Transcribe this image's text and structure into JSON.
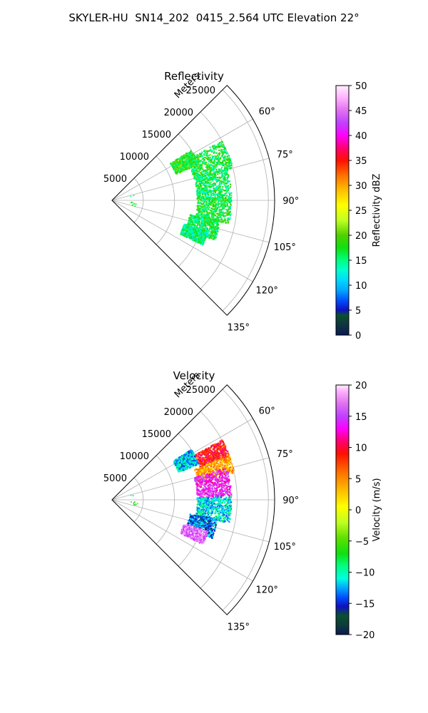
{
  "figure_title": "SKYLER-HU  SN14_202  0415_2.564 UTC Elevation 22°",
  "chart_data": [
    {
      "type": "polar-sector",
      "title": "Reflectivity",
      "range_label": "Meters",
      "azimuth_range_deg": [
        45,
        135
      ],
      "range_lim_m": [
        0,
        26000
      ],
      "range_ticks": [
        5000,
        10000,
        15000,
        20000,
        25000
      ],
      "angle_ticks": [
        "60°",
        "75°",
        "90°",
        "105°",
        "120°",
        "135°"
      ],
      "angle_tick_values": [
        60,
        75,
        90,
        105,
        120,
        135
      ],
      "grid": true,
      "colorbar": {
        "label": "Reflectivity dBZ",
        "min": 0,
        "max": 50,
        "ticks": [
          "0",
          "5",
          "10",
          "15",
          "20",
          "25",
          "30",
          "35",
          "40",
          "45",
          "50"
        ],
        "tick_values": [
          0,
          5,
          10,
          15,
          20,
          25,
          30,
          35,
          40,
          45,
          50
        ],
        "stops": [
          {
            "v": 0,
            "c": "#0a1a55"
          },
          {
            "v": 2.5,
            "c": "#0e3b3b"
          },
          {
            "v": 4,
            "c": "#0a5030"
          },
          {
            "v": 5,
            "c": "#1010c0"
          },
          {
            "v": 7,
            "c": "#0050ff"
          },
          {
            "v": 9,
            "c": "#00a8ff"
          },
          {
            "v": 11,
            "c": "#00d8ff"
          },
          {
            "v": 13,
            "c": "#00ffd0"
          },
          {
            "v": 15,
            "c": "#00ff80"
          },
          {
            "v": 17.5,
            "c": "#10e010"
          },
          {
            "v": 20,
            "c": "#50d000"
          },
          {
            "v": 23,
            "c": "#c0ff20"
          },
          {
            "v": 26,
            "c": "#ffff00"
          },
          {
            "v": 29,
            "c": "#ffc000"
          },
          {
            "v": 32,
            "c": "#ff7000"
          },
          {
            "v": 35,
            "c": "#ff1000"
          },
          {
            "v": 37.5,
            "c": "#ff0070"
          },
          {
            "v": 40,
            "c": "#ff00ff"
          },
          {
            "v": 42.5,
            "c": "#c040ff"
          },
          {
            "v": 45,
            "c": "#e070f0"
          },
          {
            "v": 47.5,
            "c": "#ffb0ff"
          },
          {
            "v": 50,
            "c": "#fff0ff"
          }
        ]
      },
      "echo_segments": [
        {
          "azimuth": [
            57,
            67
          ],
          "range_m": [
            11000,
            15000
          ],
          "value": 18
        },
        {
          "azimuth": [
            61,
            75
          ],
          "range_m": [
            13500,
            20000
          ],
          "value": 17
        },
        {
          "azimuth": [
            74,
            89
          ],
          "range_m": [
            13500,
            19000
          ],
          "value": 16
        },
        {
          "azimuth": [
            88,
            101
          ],
          "range_m": [
            13500,
            19000
          ],
          "value": 17
        },
        {
          "azimuth": [
            100,
            111
          ],
          "range_m": [
            12500,
            17500
          ],
          "value": 16
        },
        {
          "azimuth": [
            108,
            116
          ],
          "range_m": [
            12000,
            16000
          ],
          "value": 15
        }
      ],
      "near_points": [
        {
          "azimuth": 95,
          "range_m": 3200,
          "value": 17
        },
        {
          "azimuth": 98,
          "range_m": 3700,
          "value": 17
        },
        {
          "azimuth": 102,
          "range_m": 3600,
          "value": 17
        },
        {
          "azimuth": 76,
          "range_m": 3200,
          "value": 15
        }
      ]
    },
    {
      "type": "polar-sector",
      "title": "Velocity",
      "range_label": "Meters",
      "azimuth_range_deg": [
        45,
        135
      ],
      "range_lim_m": [
        0,
        26000
      ],
      "range_ticks": [
        5000,
        10000,
        15000,
        20000,
        25000
      ],
      "angle_ticks": [
        "60°",
        "75°",
        "90°",
        "105°",
        "120°",
        "135°"
      ],
      "angle_tick_values": [
        60,
        75,
        90,
        105,
        120,
        135
      ],
      "grid": true,
      "colorbar": {
        "label": "Velocity (m/s)",
        "min": -20,
        "max": 20,
        "ticks": [
          "−20",
          "−15",
          "−10",
          "−5",
          "0",
          "5",
          "10",
          "15",
          "20"
        ],
        "tick_values": [
          -20,
          -15,
          -10,
          -5,
          0,
          5,
          10,
          15,
          20
        ],
        "stops": [
          {
            "v": -20,
            "c": "#0a1a55"
          },
          {
            "v": -18.5,
            "c": "#0e3b3b"
          },
          {
            "v": -17,
            "c": "#0a5030"
          },
          {
            "v": -15.5,
            "c": "#1010c0"
          },
          {
            "v": -14,
            "c": "#0050ff"
          },
          {
            "v": -12.5,
            "c": "#00a8ff"
          },
          {
            "v": -11,
            "c": "#00ffe0"
          },
          {
            "v": -9,
            "c": "#00ff80"
          },
          {
            "v": -7,
            "c": "#10e010"
          },
          {
            "v": -4.5,
            "c": "#60e000"
          },
          {
            "v": -2,
            "c": "#c0ff20"
          },
          {
            "v": 0.5,
            "c": "#ffff00"
          },
          {
            "v": 3,
            "c": "#ffc000"
          },
          {
            "v": 6,
            "c": "#ff7000"
          },
          {
            "v": 9,
            "c": "#ff1000"
          },
          {
            "v": 11,
            "c": "#ff0070"
          },
          {
            "v": 13,
            "c": "#ff00ff"
          },
          {
            "v": 15,
            "c": "#c040ff"
          },
          {
            "v": 17,
            "c": "#e070f0"
          },
          {
            "v": 19,
            "c": "#ffb0ff"
          },
          {
            "v": 20,
            "c": "#fff0ff"
          }
        ]
      },
      "echo_segments": [
        {
          "azimuth": [
            57,
            67
          ],
          "range_m": [
            11500,
            15000
          ],
          "value": -12
        },
        {
          "azimuth": [
            61,
            70
          ],
          "range_m": [
            15000,
            20000
          ],
          "value": 9
        },
        {
          "azimuth": [
            69,
            77
          ],
          "range_m": [
            14000,
            20000
          ],
          "value": 4
        },
        {
          "azimuth": [
            74,
            88
          ],
          "range_m": [
            13500,
            19000
          ],
          "value": 14
        },
        {
          "azimuth": [
            88,
            101
          ],
          "range_m": [
            13500,
            19000
          ],
          "value": -11
        },
        {
          "azimuth": [
            100,
            111
          ],
          "range_m": [
            12500,
            17000
          ],
          "value": -14
        },
        {
          "azimuth": [
            108,
            116
          ],
          "range_m": [
            12000,
            16000
          ],
          "value": 17
        }
      ],
      "near_points": [
        {
          "azimuth": 95,
          "range_m": 3200,
          "value": -7
        },
        {
          "azimuth": 98,
          "range_m": 3700,
          "value": -8
        },
        {
          "azimuth": 102,
          "range_m": 3600,
          "value": -7
        },
        {
          "azimuth": 76,
          "range_m": 3200,
          "value": -9
        }
      ]
    }
  ]
}
